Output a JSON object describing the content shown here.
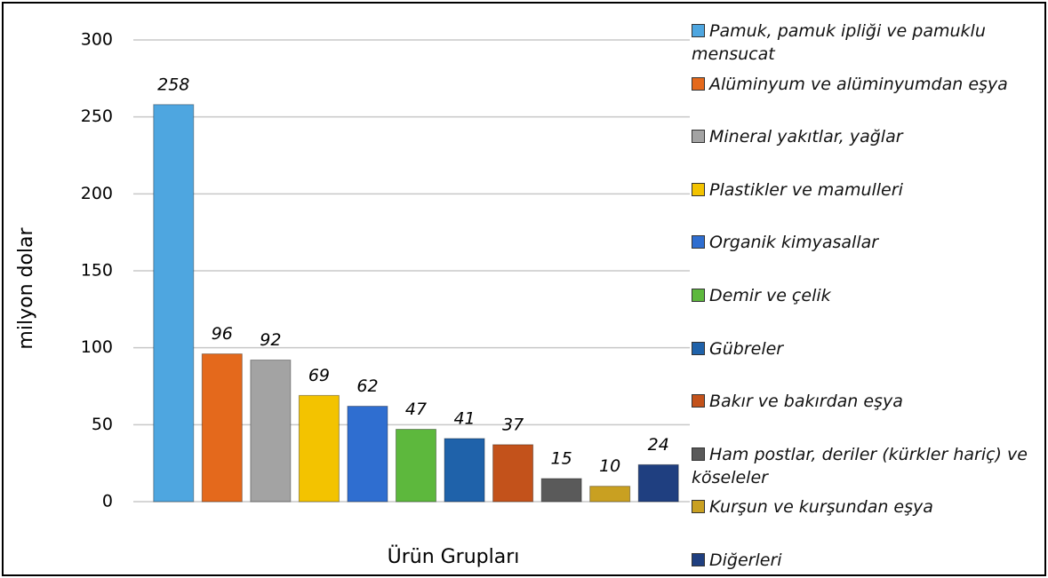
{
  "chart_data": {
    "type": "bar",
    "x_label": "Ürün Grupları",
    "y_label": "milyon dolar",
    "categories": [
      "Pamuk, pamuk ipliği ve pamuklu mensucat",
      "Alüminyum ve alüminyumdan eşya",
      "Mineral yakıtlar, yağlar",
      "Plastikler ve mamulleri",
      "Organik kimyasallar",
      "Demir ve çelik",
      "Gübreler",
      "Bakır ve bakırdan eşya",
      "Ham postlar, deriler (kürkler hariç) ve köseleler",
      "Kurşun ve kurşundan eşya",
      "Diğerleri"
    ],
    "values": [
      258,
      96,
      92,
      69,
      62,
      47,
      41,
      37,
      15,
      10,
      24
    ],
    "colors": [
      "#4ea6e0",
      "#e4691c",
      "#a3a3a3",
      "#f3c300",
      "#2f6ed0",
      "#5db83d",
      "#1f62aa",
      "#c3521b",
      "#5a5a5a",
      "#c9a021",
      "#1f3f80"
    ],
    "ylim": [
      0,
      300
    ],
    "yticks": [
      0,
      50,
      100,
      150,
      200,
      250,
      300
    ],
    "grid": true,
    "legend": "right"
  }
}
